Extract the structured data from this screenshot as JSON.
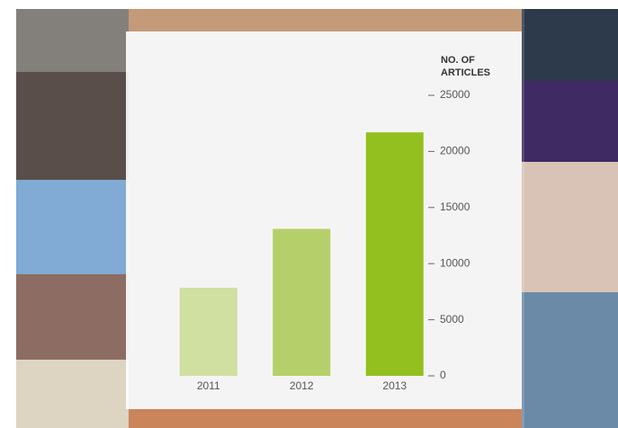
{
  "chart_data": {
    "type": "bar",
    "ylabel": [
      "NO. OF",
      "ARTICLES"
    ],
    "categories": [
      "2011",
      "2012",
      "2013"
    ],
    "values": [
      7850,
      13100,
      21700
    ],
    "colors": [
      "#cfe0a0",
      "#b5d06a",
      "#93c01f"
    ],
    "ylim": [
      0,
      25000
    ],
    "yticks": [
      0,
      5000,
      10000,
      15000,
      20000,
      25000
    ]
  }
}
